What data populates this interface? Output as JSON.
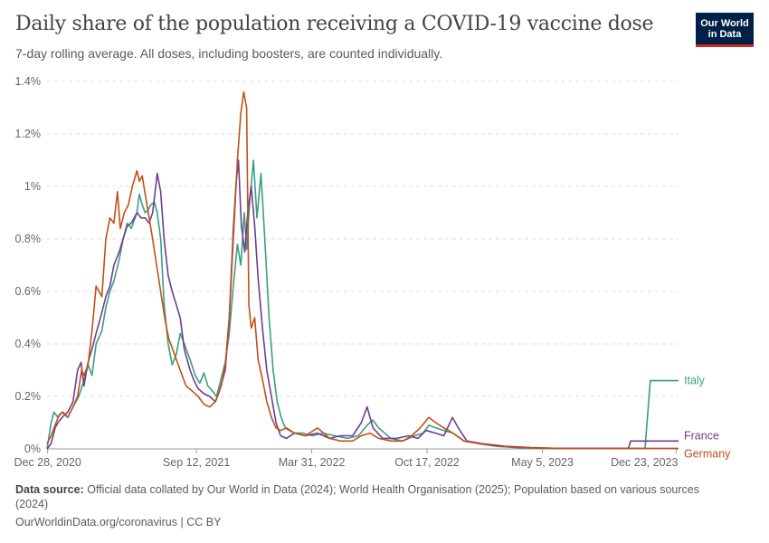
{
  "header": {
    "title": "Daily share of the population receiving a COVID-19 vaccine dose",
    "subtitle": "7-day rolling average. All doses, including boosters, are counted individually.",
    "logo_line1": "Our World",
    "logo_line2": "in Data",
    "logo_bg": "#002147",
    "logo_accent": "#ce261e"
  },
  "footer": {
    "source_label": "Data source:",
    "source_text": "Official data collated by Our World in Data (2024); World Health Organisation (2025); Population based on various sources (2024)",
    "url": "OurWorldinData.org/coronavirus | CC BY"
  },
  "chart_data": {
    "type": "line",
    "y_unit": "%",
    "ylim": [
      0,
      1.4
    ],
    "y_ticks": [
      0,
      0.2,
      0.4,
      0.6,
      0.8,
      1,
      1.2,
      1.4
    ],
    "y_tick_labels": [
      "0%",
      "0.2%",
      "0.4%",
      "0.6%",
      "0.8%",
      "1%",
      "1.2%",
      "1.4%"
    ],
    "x_range": [
      "2020-12-27",
      "2023-12-27"
    ],
    "x_ticks": [
      "2020-12-28",
      "2021-09-12",
      "2022-03-31",
      "2022-10-17",
      "2023-05-05",
      "2023-12-23"
    ],
    "x_tick_labels": [
      "Dec 28, 2020",
      "Sep 12, 2021",
      "Mar 31, 2022",
      "Oct 17, 2022",
      "May 5, 2023",
      "Dec 23, 2023"
    ],
    "grid": "horizontal dashed",
    "series": [
      {
        "name": "Italy",
        "color": "#3a9e83",
        "points": [
          [
            "2020-12-27",
            0
          ],
          [
            "2021-01-03",
            0.1
          ],
          [
            "2021-01-08",
            0.14
          ],
          [
            "2021-01-15",
            0.12
          ],
          [
            "2021-01-22",
            0.14
          ],
          [
            "2021-02-01",
            0.12
          ],
          [
            "2021-02-10",
            0.16
          ],
          [
            "2021-02-20",
            0.2
          ],
          [
            "2021-03-01",
            0.26
          ],
          [
            "2021-03-08",
            0.32
          ],
          [
            "2021-03-15",
            0.28
          ],
          [
            "2021-03-22",
            0.4
          ],
          [
            "2021-04-01",
            0.45
          ],
          [
            "2021-04-08",
            0.54
          ],
          [
            "2021-04-15",
            0.6
          ],
          [
            "2021-04-22",
            0.64
          ],
          [
            "2021-05-01",
            0.72
          ],
          [
            "2021-05-08",
            0.8
          ],
          [
            "2021-05-15",
            0.86
          ],
          [
            "2021-05-22",
            0.84
          ],
          [
            "2021-06-01",
            0.9
          ],
          [
            "2021-06-05",
            0.97
          ],
          [
            "2021-06-10",
            0.93
          ],
          [
            "2021-06-15",
            0.9
          ],
          [
            "2021-06-20",
            0.91
          ],
          [
            "2021-06-25",
            0.93
          ],
          [
            "2021-07-01",
            0.94
          ],
          [
            "2021-07-06",
            0.9
          ],
          [
            "2021-07-12",
            0.8
          ],
          [
            "2021-07-18",
            0.55
          ],
          [
            "2021-07-25",
            0.4
          ],
          [
            "2021-08-01",
            0.32
          ],
          [
            "2021-08-08",
            0.36
          ],
          [
            "2021-08-15",
            0.44
          ],
          [
            "2021-08-22",
            0.4
          ],
          [
            "2021-09-01",
            0.34
          ],
          [
            "2021-09-10",
            0.28
          ],
          [
            "2021-09-18",
            0.25
          ],
          [
            "2021-09-25",
            0.29
          ],
          [
            "2021-10-02",
            0.24
          ],
          [
            "2021-10-10",
            0.22
          ],
          [
            "2021-10-17",
            0.2
          ],
          [
            "2021-10-24",
            0.26
          ],
          [
            "2021-11-01",
            0.33
          ],
          [
            "2021-11-08",
            0.44
          ],
          [
            "2021-11-15",
            0.62
          ],
          [
            "2021-11-22",
            0.78
          ],
          [
            "2021-11-28",
            0.7
          ],
          [
            "2021-12-04",
            0.9
          ],
          [
            "2021-12-08",
            0.76
          ],
          [
            "2021-12-14",
            0.96
          ],
          [
            "2021-12-20",
            1.1
          ],
          [
            "2021-12-26",
            0.88
          ],
          [
            "2022-01-02",
            1.05
          ],
          [
            "2022-01-09",
            0.78
          ],
          [
            "2022-01-16",
            0.5
          ],
          [
            "2022-01-23",
            0.3
          ],
          [
            "2022-01-30",
            0.18
          ],
          [
            "2022-02-06",
            0.12
          ],
          [
            "2022-02-13",
            0.08
          ],
          [
            "2022-02-20",
            0.07
          ],
          [
            "2022-03-01",
            0.06
          ],
          [
            "2022-03-15",
            0.06
          ],
          [
            "2022-04-01",
            0.05
          ],
          [
            "2022-04-20",
            0.06
          ],
          [
            "2022-05-10",
            0.05
          ],
          [
            "2022-06-01",
            0.04
          ],
          [
            "2022-06-20",
            0.05
          ],
          [
            "2022-07-05",
            0.09
          ],
          [
            "2022-07-15",
            0.11
          ],
          [
            "2022-07-25",
            0.08
          ],
          [
            "2022-08-15",
            0.04
          ],
          [
            "2022-09-05",
            0.03
          ],
          [
            "2022-09-25",
            0.05
          ],
          [
            "2022-10-10",
            0.06
          ],
          [
            "2022-10-20",
            0.09
          ],
          [
            "2022-11-01",
            0.08
          ],
          [
            "2022-11-15",
            0.07
          ],
          [
            "2022-12-01",
            0.06
          ],
          [
            "2022-12-20",
            0.03
          ],
          [
            "2023-01-15",
            0.02
          ],
          [
            "2023-02-15",
            0.01
          ],
          [
            "2023-03-20",
            0.005
          ],
          [
            "2023-05-01",
            0.002
          ],
          [
            "2023-07-01",
            0.002
          ],
          [
            "2023-09-01",
            0.002
          ],
          [
            "2023-10-30",
            0.002
          ],
          [
            "2023-11-08",
            0.26
          ],
          [
            "2023-12-27",
            0.26
          ]
        ]
      },
      {
        "name": "France",
        "color": "#6d3e91",
        "points": [
          [
            "2020-12-27",
            0
          ],
          [
            "2021-01-03",
            0.02
          ],
          [
            "2021-01-10",
            0.08
          ],
          [
            "2021-01-15",
            0.1
          ],
          [
            "2021-01-22",
            0.12
          ],
          [
            "2021-02-01",
            0.14
          ],
          [
            "2021-02-10",
            0.18
          ],
          [
            "2021-02-18",
            0.3
          ],
          [
            "2021-02-24",
            0.33
          ],
          [
            "2021-03-01",
            0.24
          ],
          [
            "2021-03-08",
            0.33
          ],
          [
            "2021-03-15",
            0.38
          ],
          [
            "2021-03-22",
            0.44
          ],
          [
            "2021-04-01",
            0.52
          ],
          [
            "2021-04-08",
            0.58
          ],
          [
            "2021-04-15",
            0.62
          ],
          [
            "2021-04-22",
            0.7
          ],
          [
            "2021-05-01",
            0.75
          ],
          [
            "2021-05-08",
            0.8
          ],
          [
            "2021-05-15",
            0.85
          ],
          [
            "2021-05-22",
            0.86
          ],
          [
            "2021-06-01",
            0.9
          ],
          [
            "2021-06-08",
            0.88
          ],
          [
            "2021-06-15",
            0.88
          ],
          [
            "2021-06-22",
            0.86
          ],
          [
            "2021-06-28",
            0.9
          ],
          [
            "2021-07-03",
            0.99
          ],
          [
            "2021-07-06",
            1.05
          ],
          [
            "2021-07-12",
            0.98
          ],
          [
            "2021-07-18",
            0.8
          ],
          [
            "2021-07-25",
            0.66
          ],
          [
            "2021-08-01",
            0.6
          ],
          [
            "2021-08-08",
            0.55
          ],
          [
            "2021-08-15",
            0.5
          ],
          [
            "2021-08-22",
            0.38
          ],
          [
            "2021-09-01",
            0.3
          ],
          [
            "2021-09-08",
            0.26
          ],
          [
            "2021-09-15",
            0.23
          ],
          [
            "2021-09-25",
            0.21
          ],
          [
            "2021-10-05",
            0.2
          ],
          [
            "2021-10-15",
            0.18
          ],
          [
            "2021-10-22",
            0.22
          ],
          [
            "2021-11-01",
            0.3
          ],
          [
            "2021-11-08",
            0.5
          ],
          [
            "2021-11-15",
            0.84
          ],
          [
            "2021-11-20",
            1.02
          ],
          [
            "2021-11-24",
            1.1
          ],
          [
            "2021-11-29",
            0.85
          ],
          [
            "2021-12-05",
            0.75
          ],
          [
            "2021-12-10",
            0.9
          ],
          [
            "2021-12-16",
            1.0
          ],
          [
            "2021-12-22",
            0.85
          ],
          [
            "2021-12-28",
            0.65
          ],
          [
            "2022-01-05",
            0.45
          ],
          [
            "2022-01-12",
            0.3
          ],
          [
            "2022-01-20",
            0.2
          ],
          [
            "2022-01-28",
            0.1
          ],
          [
            "2022-02-05",
            0.05
          ],
          [
            "2022-02-15",
            0.04
          ],
          [
            "2022-03-01",
            0.06
          ],
          [
            "2022-03-20",
            0.05
          ],
          [
            "2022-04-10",
            0.06
          ],
          [
            "2022-05-01",
            0.04
          ],
          [
            "2022-05-20",
            0.05
          ],
          [
            "2022-06-10",
            0.05
          ],
          [
            "2022-06-25",
            0.1
          ],
          [
            "2022-07-05",
            0.16
          ],
          [
            "2022-07-15",
            0.08
          ],
          [
            "2022-08-01",
            0.04
          ],
          [
            "2022-08-25",
            0.04
          ],
          [
            "2022-09-15",
            0.05
          ],
          [
            "2022-10-01",
            0.04
          ],
          [
            "2022-10-15",
            0.07
          ],
          [
            "2022-11-01",
            0.06
          ],
          [
            "2022-11-15",
            0.05
          ],
          [
            "2022-11-30",
            0.12
          ],
          [
            "2022-12-10",
            0.08
          ],
          [
            "2022-12-25",
            0.03
          ],
          [
            "2023-01-20",
            0.02
          ],
          [
            "2023-03-01",
            0.01
          ],
          [
            "2023-04-15",
            0.005
          ],
          [
            "2023-06-01",
            0.002
          ],
          [
            "2023-09-01",
            0.002
          ],
          [
            "2023-10-01",
            0.002
          ],
          [
            "2023-10-05",
            0.03
          ],
          [
            "2023-12-27",
            0.03
          ]
        ]
      },
      {
        "name": "Germany",
        "color": "#c15018",
        "points": [
          [
            "2020-12-27",
            0.02
          ],
          [
            "2021-01-03",
            0.05
          ],
          [
            "2021-01-10",
            0.09
          ],
          [
            "2021-01-17",
            0.13
          ],
          [
            "2021-01-24",
            0.14
          ],
          [
            "2021-02-01",
            0.12
          ],
          [
            "2021-02-10",
            0.16
          ],
          [
            "2021-02-18",
            0.2
          ],
          [
            "2021-02-25",
            0.3
          ],
          [
            "2021-03-01",
            0.28
          ],
          [
            "2021-03-08",
            0.32
          ],
          [
            "2021-03-15",
            0.45
          ],
          [
            "2021-03-22",
            0.62
          ],
          [
            "2021-04-01",
            0.58
          ],
          [
            "2021-04-08",
            0.8
          ],
          [
            "2021-04-15",
            0.88
          ],
          [
            "2021-04-22",
            0.86
          ],
          [
            "2021-04-28",
            0.98
          ],
          [
            "2021-05-03",
            0.84
          ],
          [
            "2021-05-10",
            0.9
          ],
          [
            "2021-05-17",
            0.93
          ],
          [
            "2021-05-24",
            1.0
          ],
          [
            "2021-06-01",
            1.06
          ],
          [
            "2021-06-05",
            1.02
          ],
          [
            "2021-06-10",
            1.04
          ],
          [
            "2021-06-16",
            0.96
          ],
          [
            "2021-06-22",
            0.88
          ],
          [
            "2021-06-28",
            0.8
          ],
          [
            "2021-07-05",
            0.7
          ],
          [
            "2021-07-12",
            0.6
          ],
          [
            "2021-07-19",
            0.5
          ],
          [
            "2021-07-26",
            0.42
          ],
          [
            "2021-08-05",
            0.36
          ],
          [
            "2021-08-15",
            0.3
          ],
          [
            "2021-08-25",
            0.24
          ],
          [
            "2021-09-05",
            0.22
          ],
          [
            "2021-09-15",
            0.2
          ],
          [
            "2021-09-25",
            0.17
          ],
          [
            "2021-10-05",
            0.16
          ],
          [
            "2021-10-15",
            0.18
          ],
          [
            "2021-10-25",
            0.24
          ],
          [
            "2021-11-01",
            0.32
          ],
          [
            "2021-11-08",
            0.5
          ],
          [
            "2021-11-15",
            0.8
          ],
          [
            "2021-11-22",
            1.1
          ],
          [
            "2021-11-28",
            1.28
          ],
          [
            "2021-12-03",
            1.36
          ],
          [
            "2021-12-08",
            1.3
          ],
          [
            "2021-12-12",
            0.55
          ],
          [
            "2021-12-16",
            0.46
          ],
          [
            "2021-12-22",
            0.5
          ],
          [
            "2021-12-28",
            0.34
          ],
          [
            "2022-01-05",
            0.26
          ],
          [
            "2022-01-12",
            0.18
          ],
          [
            "2022-01-20",
            0.12
          ],
          [
            "2022-01-28",
            0.08
          ],
          [
            "2022-02-05",
            0.07
          ],
          [
            "2022-02-15",
            0.08
          ],
          [
            "2022-03-01",
            0.06
          ],
          [
            "2022-03-20",
            0.05
          ],
          [
            "2022-04-10",
            0.08
          ],
          [
            "2022-05-01",
            0.04
          ],
          [
            "2022-05-20",
            0.03
          ],
          [
            "2022-06-10",
            0.03
          ],
          [
            "2022-06-25",
            0.05
          ],
          [
            "2022-07-10",
            0.06
          ],
          [
            "2022-07-25",
            0.04
          ],
          [
            "2022-08-15",
            0.03
          ],
          [
            "2022-09-05",
            0.03
          ],
          [
            "2022-09-20",
            0.05
          ],
          [
            "2022-10-05",
            0.08
          ],
          [
            "2022-10-20",
            0.12
          ],
          [
            "2022-11-01",
            0.1
          ],
          [
            "2022-11-15",
            0.08
          ],
          [
            "2022-12-01",
            0.06
          ],
          [
            "2022-12-20",
            0.03
          ],
          [
            "2023-01-15",
            0.02
          ],
          [
            "2023-02-15",
            0.01
          ],
          [
            "2023-04-01",
            0.005
          ],
          [
            "2023-06-01",
            0.002
          ],
          [
            "2023-09-01",
            0.002
          ],
          [
            "2023-12-27",
            0.002
          ]
        ]
      }
    ]
  }
}
